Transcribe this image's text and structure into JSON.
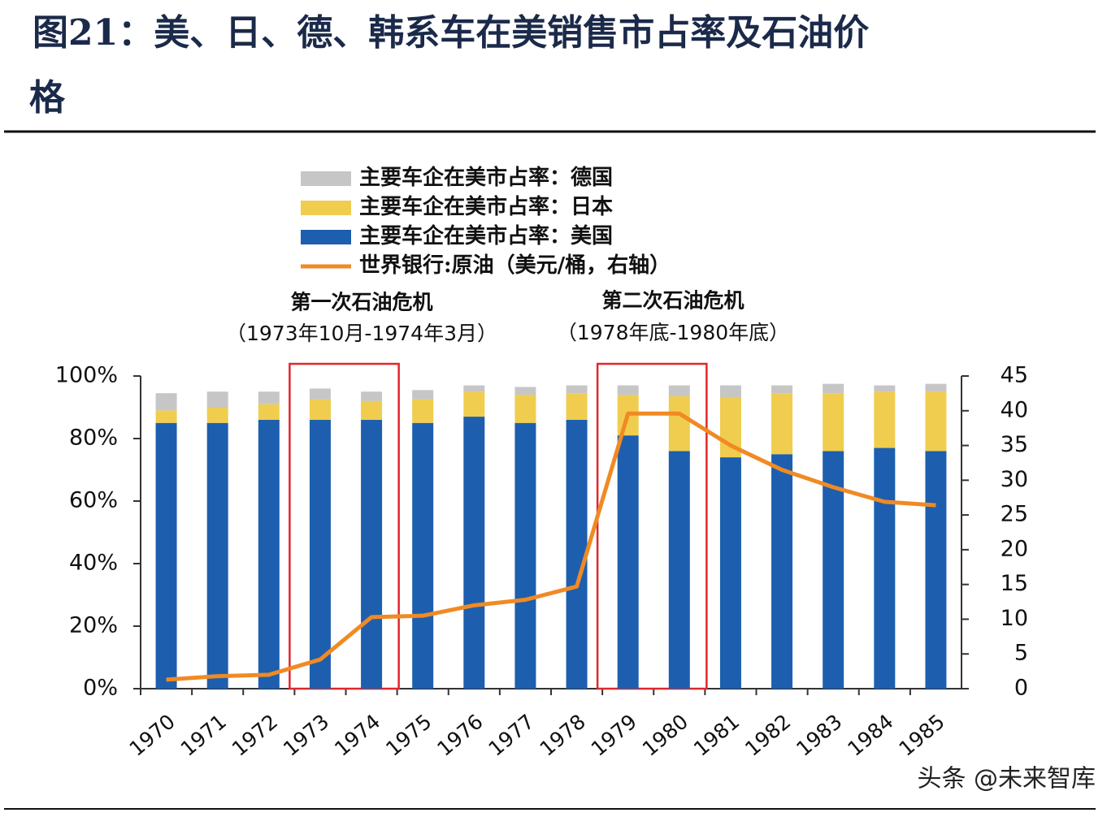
{
  "chart_data": {
    "type": "bar",
    "title": [
      "图21：美、日、德、韩系车在美销售市占率及石油价",
      "格"
    ],
    "annotations": [
      {
        "title": "第一次石油危机",
        "period": "（1973年10月-1974年3月）"
      },
      {
        "title": "第二次石油危机",
        "period": "（1978年底-1980年底）"
      }
    ],
    "categories": [
      "1970",
      "1971",
      "1972",
      "1973",
      "1974",
      "1975",
      "1976",
      "1977",
      "1978",
      "1979",
      "1980",
      "1981",
      "1982",
      "1983",
      "1984",
      "1985"
    ],
    "series": [
      {
        "name": "主要车企在美市占率：德国",
        "color": "#c6c6c6",
        "values": [
          5.5,
          5,
          4,
          3.5,
          3,
          3,
          2,
          2.5,
          2.5,
          3,
          3.5,
          4,
          2.5,
          3,
          2,
          2.5
        ]
      },
      {
        "name": "主要车企在美市占率：日本",
        "color": "#f0cd4e",
        "values": [
          4,
          5,
          5,
          6.5,
          6,
          7.5,
          8,
          9,
          8.5,
          13,
          17.5,
          19,
          19.5,
          18.5,
          18,
          19
        ]
      },
      {
        "name": "主要车企在美市占率：美国",
        "color": "#1d5fae",
        "values": [
          85,
          85,
          86,
          86,
          86,
          85,
          87,
          85,
          86,
          81,
          76,
          74,
          75,
          76,
          77,
          76
        ]
      },
      {
        "name": "世界银行:原油（美元/桶，右轴）",
        "color": "#f08a24",
        "axis": "y2",
        "type": "line",
        "values": [
          1.3,
          1.8,
          2.0,
          4.2,
          10.3,
          10.5,
          12,
          12.8,
          14.7,
          39.6,
          39.6,
          35,
          31.5,
          29,
          26.9,
          26.4
        ]
      }
    ],
    "ylim": [
      0,
      100
    ],
    "yticks": [
      {
        "value": 0,
        "label": "0%"
      },
      {
        "value": 20,
        "label": "20%"
      },
      {
        "value": 40,
        "label": "40%"
      },
      {
        "value": 60,
        "label": "60%"
      },
      {
        "value": 80,
        "label": "80%"
      },
      {
        "value": 100,
        "label": "100%"
      }
    ],
    "y2lim": [
      0,
      45
    ],
    "y2ticks": [
      0,
      5,
      10,
      15,
      20,
      25,
      30,
      35,
      40,
      45
    ]
  },
  "watermark": "头条 @未来智库"
}
